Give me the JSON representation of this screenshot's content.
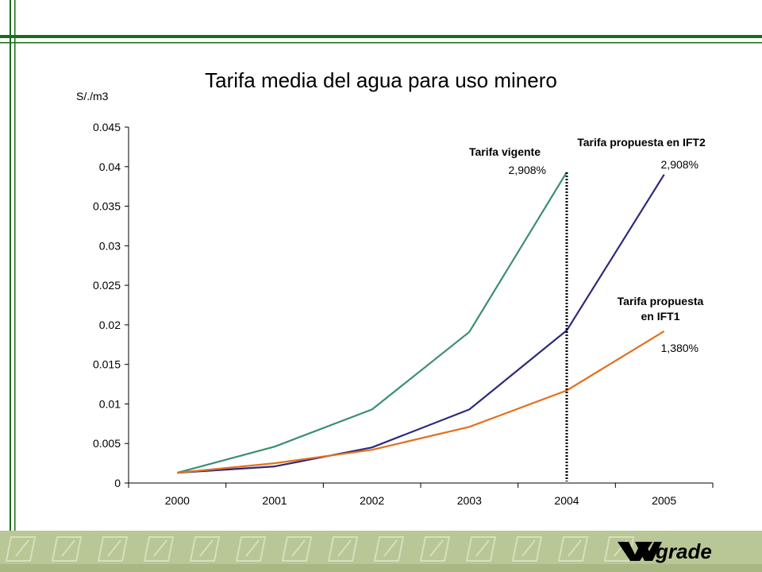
{
  "slide": {
    "frame_color": "#1b6b1b",
    "footer_color": "#b9c796",
    "footer_pattern_color": "#d6dfbc",
    "logo_text": "grade",
    "logo_color": "#000000"
  },
  "chart_data": {
    "type": "line",
    "title": "Tarifa media del agua para uso minero",
    "ylabel": "S/./m3",
    "xlabel": "",
    "categories": [
      "2000",
      "2001",
      "2002",
      "2003",
      "2004",
      "2005"
    ],
    "ylim": [
      0,
      0.045
    ],
    "yticks": [
      "0",
      "0.005",
      "0.01",
      "0.015",
      "0.02",
      "0.025",
      "0.03",
      "0.035",
      "0.04",
      "0.045"
    ],
    "grid": false,
    "series": [
      {
        "color": "#3a8f6e",
        "values": [
          0.0013,
          0.0046,
          0.0093,
          0.0191,
          0.0393,
          null
        ]
      },
      {
        "color": "#2d2a7a",
        "values": [
          0.0013,
          0.0021,
          0.0045,
          0.0093,
          0.0193,
          0.039
        ]
      },
      {
        "color": "#e2701f",
        "values": [
          0.0013,
          0.0025,
          0.0042,
          0.0071,
          0.0117,
          0.0192
        ]
      }
    ],
    "vertical_marker": {
      "at": "2004"
    },
    "annotations": [
      {
        "id": "vigente-title",
        "text": "Tarifa vigente"
      },
      {
        "id": "vigente-rate",
        "text": "2,908%"
      },
      {
        "id": "ift2-title",
        "text": "Tarifa propuesta en IFT2"
      },
      {
        "id": "ift2-rate",
        "text": "2,908%"
      },
      {
        "id": "ift1-title-1",
        "text": "Tarifa propuesta"
      },
      {
        "id": "ift1-title-2",
        "text": "en IFT1"
      },
      {
        "id": "ift1-rate",
        "text": "1,380%"
      }
    ]
  }
}
